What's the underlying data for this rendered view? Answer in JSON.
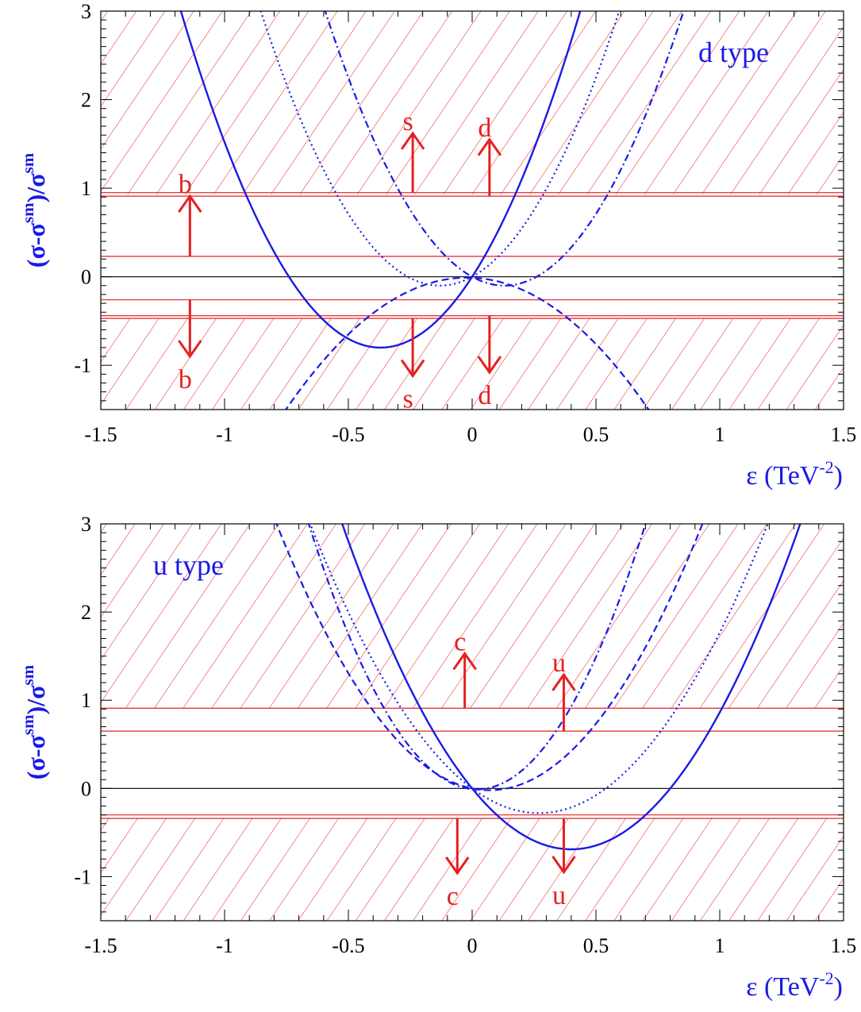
{
  "chart_data": [
    {
      "type": "line",
      "panel": "top",
      "title": "",
      "annotation": "d type",
      "xlabel": "ε (TeV",
      "xlabel_sup": "-2",
      "xlabel_close": ")",
      "ylabel_parts": [
        "(σ-σ",
        "sm",
        ")/σ",
        "sm"
      ],
      "xlim": [
        -1.5,
        1.5
      ],
      "ylim": [
        -1.5,
        3
      ],
      "xticks": [
        -1.5,
        -1,
        -0.5,
        0,
        0.5,
        1,
        1.5
      ],
      "xtick_labels": [
        "-1.5",
        "-1",
        "-0.5",
        "0",
        "0.5",
        "1",
        "1.5"
      ],
      "yticks": [
        -1,
        0,
        1,
        2,
        3
      ],
      "ytick_labels": [
        "-1",
        "0",
        "1",
        "2",
        "3"
      ],
      "series": [
        {
          "style": "solid",
          "color": "#1a1ae6",
          "vertex": [
            -0.37,
            -0.8
          ],
          "through": [
            0,
            0
          ]
        },
        {
          "style": "dashed",
          "color": "#1a1ae6",
          "vertex": [
            -0.02,
            -0.01
          ],
          "through": [
            -0.2,
            -0.1
          ]
        },
        {
          "style": "dotted",
          "color": "#1a1ae6",
          "vertex": [
            -0.13,
            -0.1
          ],
          "through": [
            0,
            0
          ]
        },
        {
          "style": "dashdot",
          "color": "#1a1ae6",
          "vertex": [
            0.13,
            -0.1
          ],
          "through": [
            0,
            0
          ]
        }
      ],
      "hlines": [
        {
          "y": 0.95,
          "color": "#e62020"
        },
        {
          "y": 0.91,
          "color": "#e62020"
        },
        {
          "y": 0.23,
          "color": "#e62020"
        },
        {
          "y": 0.0,
          "color": "#000000"
        },
        {
          "y": -0.26,
          "color": "#e62020"
        },
        {
          "y": -0.44,
          "color": "#e62020"
        },
        {
          "y": -0.47,
          "color": "#e62020"
        }
      ],
      "hatched_bands": [
        [
          0.93,
          3.0
        ],
        [
          -1.5,
          -0.47
        ]
      ],
      "arrows": [
        {
          "label": "b",
          "x": -1.14,
          "y_from": 0.23,
          "y_to": 0.91,
          "direction": "up"
        },
        {
          "label": "s",
          "x": -0.24,
          "y_from": 0.95,
          "y_to": 1.62,
          "direction": "up"
        },
        {
          "label": "d",
          "x": 0.07,
          "y_from": 0.91,
          "y_to": 1.55,
          "direction": "up"
        },
        {
          "label": "b",
          "x": -1.14,
          "y_from": -0.26,
          "y_to": -0.9,
          "direction": "down"
        },
        {
          "label": "s",
          "x": -0.24,
          "y_from": -0.47,
          "y_to": -1.12,
          "direction": "down"
        },
        {
          "label": "d",
          "x": 0.07,
          "y_from": -0.44,
          "y_to": -1.08,
          "direction": "down"
        }
      ],
      "colors": {
        "curves": "#1a1ae6",
        "bands": "#e62020",
        "axes": "#000000"
      }
    },
    {
      "type": "line",
      "panel": "bottom",
      "title": "",
      "annotation": "u type",
      "xlabel": "ε (TeV",
      "xlabel_sup": "-2",
      "xlabel_close": ")",
      "ylabel_parts": [
        "(σ-σ",
        "sm",
        ")/σ",
        "sm"
      ],
      "xlim": [
        -1.5,
        1.5
      ],
      "ylim": [
        -1.5,
        3
      ],
      "xticks": [
        -1.5,
        -1,
        -0.5,
        0,
        0.5,
        1,
        1.5
      ],
      "xtick_labels": [
        "-1.5",
        "-1",
        "-0.5",
        "0",
        "0.5",
        "1",
        "1.5"
      ],
      "yticks": [
        -1,
        0,
        1,
        2,
        3
      ],
      "ytick_labels": [
        "-1",
        "0",
        "1",
        "2",
        "3"
      ],
      "series": [
        {
          "style": "solid",
          "color": "#1a1ae6",
          "vertex": [
            0.4,
            -0.69
          ],
          "through": [
            0,
            0
          ]
        },
        {
          "style": "dotted",
          "color": "#1a1ae6",
          "vertex": [
            0.27,
            -0.28
          ],
          "through": [
            0,
            0
          ]
        },
        {
          "style": "dashed",
          "color": "#1a1ae6",
          "vertex": [
            0.07,
            -0.02
          ],
          "through": [
            0,
            0
          ]
        },
        {
          "style": "dashdot",
          "color": "#1a1ae6",
          "vertex": [
            0.02,
            -0.01
          ],
          "through": [
            0.3,
            0.5
          ]
        }
      ],
      "hlines": [
        {
          "y": 0.91,
          "color": "#e62020"
        },
        {
          "y": 0.65,
          "color": "#e62020"
        },
        {
          "y": 0.0,
          "color": "#000000"
        },
        {
          "y": -0.3,
          "color": "#e62020"
        },
        {
          "y": -0.34,
          "color": "#e62020"
        }
      ],
      "hatched_bands": [
        [
          0.91,
          3.0
        ],
        [
          -1.5,
          -0.34
        ]
      ],
      "arrows": [
        {
          "label": "c",
          "x": -0.03,
          "y_from": 0.91,
          "y_to": 1.53,
          "direction": "up"
        },
        {
          "label": "u",
          "x": 0.37,
          "y_from": 0.65,
          "y_to": 1.29,
          "direction": "up"
        },
        {
          "label": "c",
          "x": -0.06,
          "y_from": -0.34,
          "y_to": -0.96,
          "direction": "down"
        },
        {
          "label": "u",
          "x": 0.37,
          "y_from": -0.34,
          "y_to": -0.95,
          "direction": "down"
        }
      ],
      "colors": {
        "curves": "#1a1ae6",
        "bands": "#e62020",
        "axes": "#000000"
      }
    }
  ]
}
